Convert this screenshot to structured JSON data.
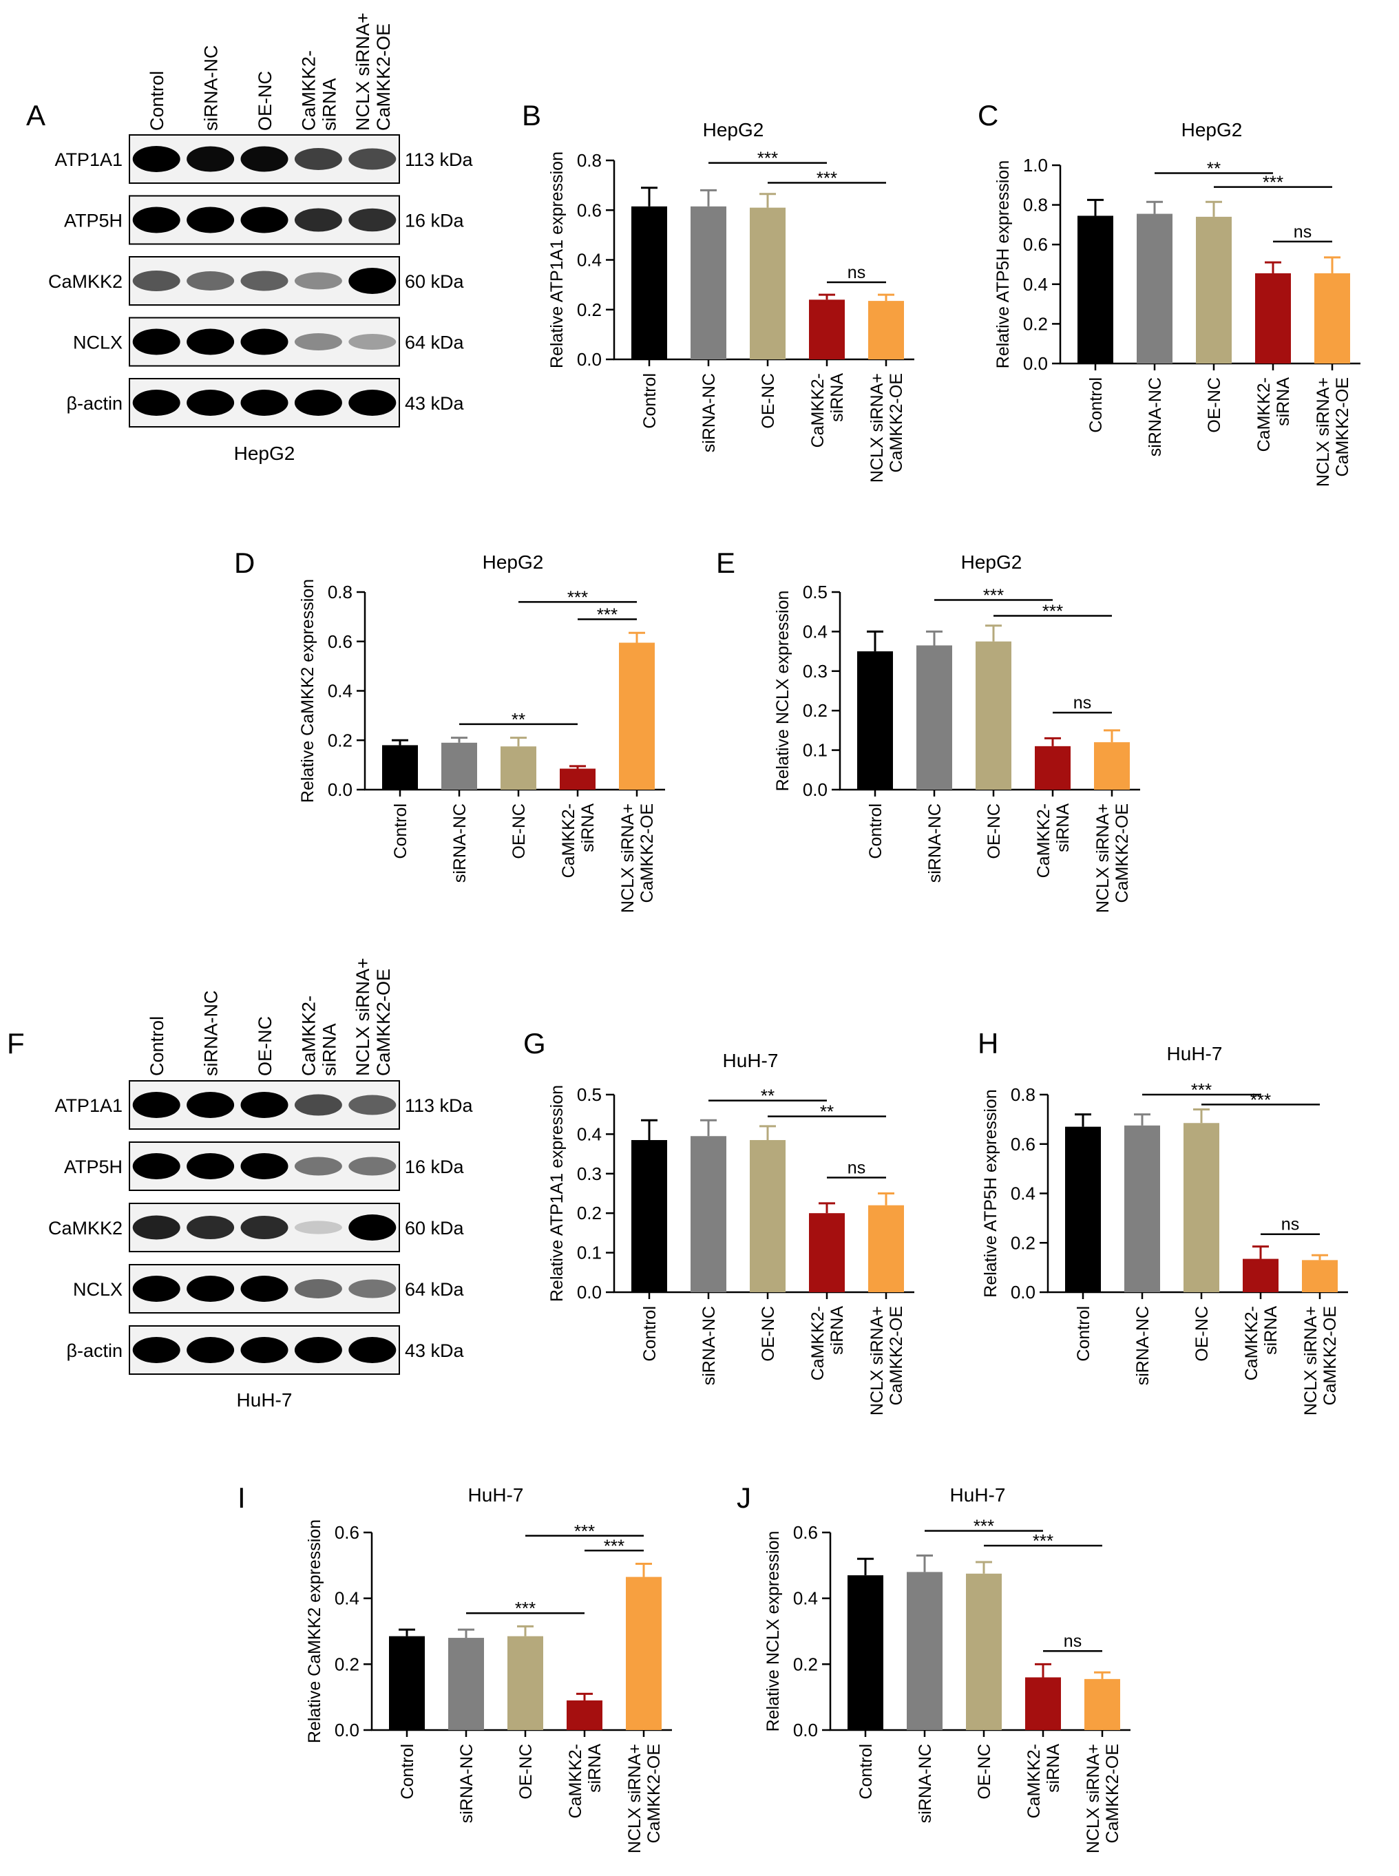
{
  "categories": [
    "Control",
    "siRNA-NC",
    "OE-NC",
    "CaMKK2-siRNA",
    "NCLX siRNA+CaMKK2-OE"
  ],
  "category_lines": [
    [
      "Control"
    ],
    [
      "siRNA-NC"
    ],
    [
      "OE-NC"
    ],
    [
      "CaMKK2-",
      "siRNA"
    ],
    [
      "NCLX siRNA+",
      "CaMKK2-OE"
    ]
  ],
  "bar_colors": [
    "#000000",
    "#808080",
    "#B5A97C",
    "#A50F0F",
    "#F7A040"
  ],
  "blots": [
    {
      "panel": "A",
      "cell_line": "HepG2",
      "proteins": [
        "ATP1A1",
        "ATP5H",
        "CaMKK2",
        "NCLX",
        "β-actin"
      ],
      "sizes": [
        "113 kDa",
        "16 kDa",
        "60 kDa",
        "64 kDa",
        "43 kDa"
      ],
      "band_intensity": [
        [
          1.0,
          0.95,
          0.95,
          0.7,
          0.65
        ],
        [
          1.0,
          1.0,
          1.0,
          0.8,
          0.78
        ],
        [
          0.6,
          0.5,
          0.55,
          0.35,
          1.0
        ],
        [
          1.0,
          1.0,
          1.0,
          0.35,
          0.25
        ],
        [
          1.0,
          1.0,
          1.0,
          1.0,
          1.0
        ]
      ]
    },
    {
      "panel": "F",
      "cell_line": "HuH-7",
      "proteins": [
        "ATP1A1",
        "ATP5H",
        "CaMKK2",
        "NCLX",
        "β-actin"
      ],
      "sizes": [
        "113 kDa",
        "16 kDa",
        "60 kDa",
        "64 kDa",
        "43 kDa"
      ],
      "band_intensity": [
        [
          1.0,
          1.0,
          1.0,
          0.65,
          0.55
        ],
        [
          1.0,
          1.0,
          1.0,
          0.45,
          0.45
        ],
        [
          0.85,
          0.8,
          0.8,
          0.06,
          1.0
        ],
        [
          1.0,
          1.0,
          1.0,
          0.5,
          0.45
        ],
        [
          1.0,
          1.0,
          1.0,
          1.0,
          1.0
        ]
      ]
    }
  ],
  "chart_data": [
    {
      "panel": "B",
      "type": "bar",
      "title": "HepG2",
      "ylabel": "Relative  ATP1A1 expression",
      "ylim": [
        0,
        0.8
      ],
      "ticks": [
        0.0,
        0.2,
        0.4,
        0.6,
        0.8
      ],
      "tick_labels": [
        "0.0",
        "0.2",
        "0.4",
        "0.6",
        "0.8"
      ],
      "values": [
        0.615,
        0.615,
        0.61,
        0.24,
        0.235
      ],
      "errors": [
        0.075,
        0.065,
        0.055,
        0.02,
        0.025
      ],
      "sig": [
        {
          "from": 1,
          "to": 3,
          "label": "***",
          "y": 0.79
        },
        {
          "from": 2,
          "to": 4,
          "label": "***",
          "y": 0.71
        },
        {
          "from": 3,
          "to": 4,
          "label": "ns",
          "y": 0.31
        }
      ]
    },
    {
      "panel": "C",
      "type": "bar",
      "title": "HepG2",
      "ylabel": "Relative ATP5H expression",
      "ylim": [
        0,
        1.0
      ],
      "ticks": [
        0.0,
        0.2,
        0.4,
        0.6,
        0.8,
        1.0
      ],
      "tick_labels": [
        "0.0",
        "0.2",
        "0.4",
        "0.6",
        "0.8",
        "1.0"
      ],
      "values": [
        0.745,
        0.755,
        0.74,
        0.455,
        0.455
      ],
      "errors": [
        0.08,
        0.06,
        0.075,
        0.055,
        0.08
      ],
      "sig": [
        {
          "from": 1,
          "to": 3,
          "label": "**",
          "y": 0.96
        },
        {
          "from": 2,
          "to": 4,
          "label": "***",
          "y": 0.89
        },
        {
          "from": 3,
          "to": 4,
          "label": "ns",
          "y": 0.615
        }
      ]
    },
    {
      "panel": "D",
      "type": "bar",
      "title": "HepG2",
      "ylabel": "Relative CaMKK2 expression",
      "ylim": [
        0,
        0.8
      ],
      "ticks": [
        0.0,
        0.2,
        0.4,
        0.6,
        0.8
      ],
      "tick_labels": [
        "0.0",
        "0.2",
        "0.4",
        "0.6",
        "0.8"
      ],
      "values": [
        0.18,
        0.19,
        0.175,
        0.085,
        0.595
      ],
      "errors": [
        0.02,
        0.02,
        0.035,
        0.01,
        0.04
      ],
      "sig": [
        {
          "from": 2,
          "to": 4,
          "label": "***",
          "y": 0.76
        },
        {
          "from": 3,
          "to": 4,
          "label": "***",
          "y": 0.69
        },
        {
          "from": 1,
          "to": 3,
          "label": "**",
          "y": 0.265
        }
      ]
    },
    {
      "panel": "E",
      "type": "bar",
      "title": "HepG2",
      "ylabel": "Relative NCLX expression",
      "ylim": [
        0,
        0.5
      ],
      "ticks": [
        0.0,
        0.1,
        0.2,
        0.3,
        0.4,
        0.5
      ],
      "tick_labels": [
        "0.0",
        "0.1",
        "0.2",
        "0.3",
        "0.4",
        "0.5"
      ],
      "values": [
        0.35,
        0.365,
        0.375,
        0.11,
        0.12
      ],
      "errors": [
        0.05,
        0.035,
        0.04,
        0.02,
        0.03
      ],
      "sig": [
        {
          "from": 1,
          "to": 3,
          "label": "***",
          "y": 0.48
        },
        {
          "from": 2,
          "to": 4,
          "label": "***",
          "y": 0.44
        },
        {
          "from": 3,
          "to": 4,
          "label": "ns",
          "y": 0.195
        }
      ]
    },
    {
      "panel": "G",
      "type": "bar",
      "title": "HuH-7",
      "ylabel": "Relative  ATP1A1 expression",
      "ylim": [
        0,
        0.5
      ],
      "ticks": [
        0.0,
        0.1,
        0.2,
        0.3,
        0.4,
        0.5
      ],
      "tick_labels": [
        "0.0",
        "0.1",
        "0.2",
        "0.3",
        "0.4",
        "0.5"
      ],
      "values": [
        0.385,
        0.395,
        0.385,
        0.2,
        0.22
      ],
      "errors": [
        0.05,
        0.04,
        0.035,
        0.025,
        0.03
      ],
      "sig": [
        {
          "from": 1,
          "to": 3,
          "label": "**",
          "y": 0.485
        },
        {
          "from": 2,
          "to": 4,
          "label": "**",
          "y": 0.445
        },
        {
          "from": 3,
          "to": 4,
          "label": "ns",
          "y": 0.29
        }
      ]
    },
    {
      "panel": "H",
      "type": "bar",
      "title": "HuH-7",
      "ylabel": "Relative ATP5H expression",
      "ylim": [
        0,
        0.8
      ],
      "ticks": [
        0.0,
        0.2,
        0.4,
        0.6,
        0.8
      ],
      "tick_labels": [
        "0.0",
        "0.2",
        "0.4",
        "0.6",
        "0.8"
      ],
      "values": [
        0.67,
        0.675,
        0.685,
        0.135,
        0.13
      ],
      "errors": [
        0.05,
        0.045,
        0.055,
        0.05,
        0.02
      ],
      "sig": [
        {
          "from": 1,
          "to": 3,
          "label": "***",
          "y": 0.8
        },
        {
          "from": 2,
          "to": 4,
          "label": "***",
          "y": 0.76
        },
        {
          "from": 3,
          "to": 4,
          "label": "ns",
          "y": 0.235
        }
      ]
    },
    {
      "panel": "I",
      "type": "bar",
      "title": "HuH-7",
      "ylabel": "Relative CaMKK2 expression",
      "ylim": [
        0,
        0.6
      ],
      "ticks": [
        0.0,
        0.2,
        0.4,
        0.6
      ],
      "tick_labels": [
        "0.0",
        "0.2",
        "0.4",
        "0.6"
      ],
      "values": [
        0.285,
        0.28,
        0.285,
        0.09,
        0.465
      ],
      "errors": [
        0.02,
        0.025,
        0.03,
        0.02,
        0.04
      ],
      "sig": [
        {
          "from": 2,
          "to": 4,
          "label": "***",
          "y": 0.59
        },
        {
          "from": 3,
          "to": 4,
          "label": "***",
          "y": 0.545
        },
        {
          "from": 1,
          "to": 3,
          "label": "***",
          "y": 0.355
        }
      ]
    },
    {
      "panel": "J",
      "type": "bar",
      "title": "HuH-7",
      "ylabel": "Relative NCLX expression",
      "ylim": [
        0,
        0.6
      ],
      "ticks": [
        0.0,
        0.2,
        0.4,
        0.6
      ],
      "tick_labels": [
        "0.0",
        "0.2",
        "0.4",
        "0.6"
      ],
      "values": [
        0.47,
        0.48,
        0.475,
        0.16,
        0.155
      ],
      "errors": [
        0.05,
        0.05,
        0.035,
        0.04,
        0.02
      ],
      "sig": [
        {
          "from": 1,
          "to": 3,
          "label": "***",
          "y": 0.605
        },
        {
          "from": 2,
          "to": 4,
          "label": "***",
          "y": 0.56
        },
        {
          "from": 3,
          "to": 4,
          "label": "ns",
          "y": 0.24
        }
      ]
    }
  ]
}
